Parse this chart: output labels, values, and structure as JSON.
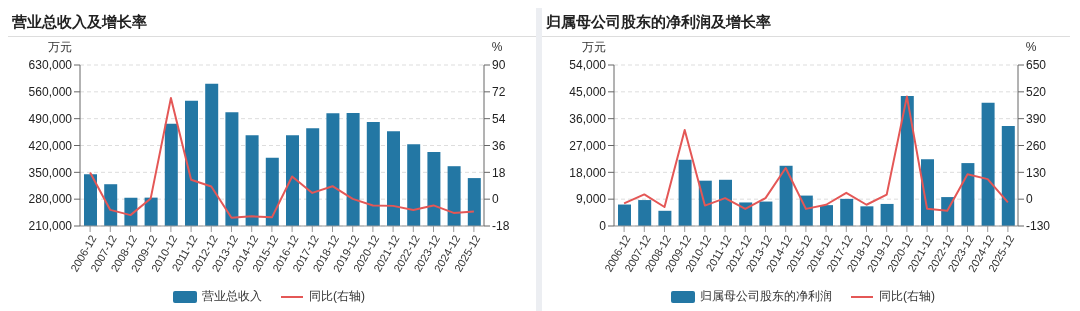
{
  "chart_data": [
    {
      "type": "bar",
      "title": "营业总收入及增长率",
      "ylabel": "万元",
      "y2label": "%",
      "categories": [
        "2006-12",
        "2007-12",
        "2008-12",
        "2009-12",
        "2010-12",
        "2011-12",
        "2012-12",
        "2013-12",
        "2014-12",
        "2015-12",
        "2016-12",
        "2017-12",
        "2018-12",
        "2019-12",
        "2020-12",
        "2021-12",
        "2022-12",
        "2023-12",
        "2024-12",
        "2025-12"
      ],
      "series": [
        {
          "name": "营业总收入",
          "color": "#2377a4",
          "values": [
            345000,
            319000,
            284000,
            284000,
            477000,
            537000,
            581000,
            507000,
            447000,
            388000,
            447000,
            465000,
            504000,
            505000,
            481000,
            457000,
            423000,
            403000,
            366000,
            335000
          ]
        },
        {
          "name": "同比(右轴)",
          "type": "line",
          "axis": "y2",
          "color": "#e45756",
          "values": [
            17.9,
            -7.2,
            -10.7,
            0.5,
            67.8,
            13,
            8.5,
            -12.5,
            -11.5,
            -12.2,
            15.2,
            4.2,
            8.7,
            0.2,
            -4.2,
            -4.5,
            -7.2,
            -4.2,
            -9.2,
            -8.2
          ]
        }
      ],
      "ylim": [
        210000,
        630000
      ],
      "yticks": [
        {
          "value": 210000,
          "label": "210,000"
        },
        {
          "value": 280000,
          "label": "280,000"
        },
        {
          "value": 350000,
          "label": "350,000"
        },
        {
          "value": 420000,
          "label": "420,000"
        },
        {
          "value": 490000,
          "label": "490,000"
        },
        {
          "value": 560000,
          "label": "560,000"
        },
        {
          "value": 630000,
          "label": "630,000"
        }
      ],
      "y2lim": [
        -18,
        90
      ],
      "y2ticks": [
        -18,
        0,
        18,
        36,
        54,
        72,
        90
      ],
      "grid": "y",
      "legend": "bottom",
      "marker": "none"
    },
    {
      "type": "bar",
      "title": "归属母公司股东的净利润及增长率",
      "ylabel": "万元",
      "y2label": "%",
      "categories": [
        "2006-12",
        "2007-12",
        "2008-12",
        "2009-12",
        "2010-12",
        "2011-12",
        "2012-12",
        "2013-12",
        "2014-12",
        "2015-12",
        "2016-12",
        "2017-12",
        "2018-12",
        "2019-12",
        "2020-12",
        "2021-12",
        "2022-12",
        "2023-12",
        "2024-12",
        "2025-12"
      ],
      "series": [
        {
          "name": "归属母公司股东的净利润",
          "color": "#2377a4",
          "values": [
            7200,
            8700,
            5100,
            22200,
            15200,
            15500,
            7900,
            8200,
            20200,
            10200,
            7000,
            9100,
            6600,
            7400,
            43600,
            22400,
            9700,
            21100,
            41300,
            33500
          ]
        },
        {
          "name": "同比(右轴)",
          "type": "line",
          "axis": "y2",
          "color": "#e45756",
          "values": [
            -20,
            23,
            -38,
            335,
            -31,
            5,
            -47,
            5,
            151,
            -47,
            -27,
            31,
            -27,
            22,
            497,
            -47,
            -56,
            121,
            97,
            -16
          ]
        }
      ],
      "ylim": [
        0,
        54000
      ],
      "yticks": [
        0,
        {
          "value": 9000,
          "label": "9,000"
        },
        {
          "value": 18000,
          "label": "18,000"
        },
        {
          "value": 27000,
          "label": "27,000"
        },
        {
          "value": 36000,
          "label": "36,000"
        },
        {
          "value": 45000,
          "label": "45,000"
        },
        {
          "value": 54000,
          "label": "54,000"
        }
      ],
      "y2lim": [
        -130,
        650
      ],
      "y2ticks": [
        -130,
        0,
        130,
        260,
        390,
        520,
        650
      ],
      "grid": "y",
      "legend": "bottom",
      "marker": "none"
    }
  ]
}
